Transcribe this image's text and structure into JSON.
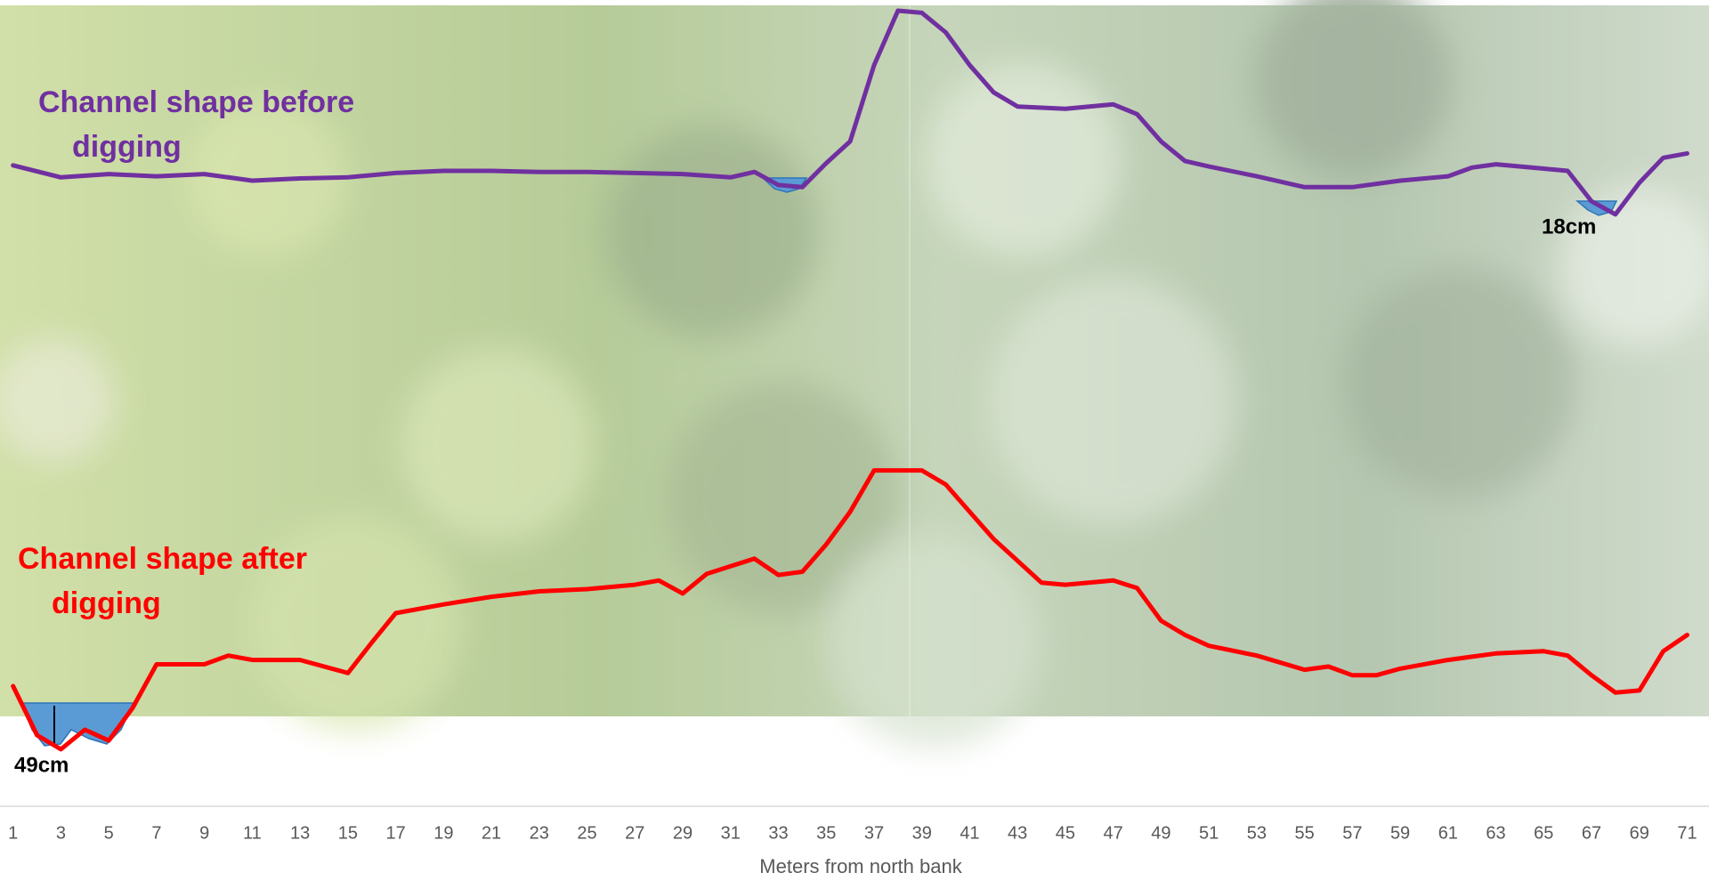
{
  "chart_data": {
    "type": "line",
    "x_label": "Meters from north bank",
    "xlim": [
      1,
      71
    ],
    "xticks": [
      1,
      3,
      5,
      7,
      9,
      11,
      13,
      15,
      17,
      19,
      21,
      23,
      25,
      27,
      29,
      31,
      33,
      35,
      37,
      39,
      41,
      43,
      45,
      47,
      49,
      51,
      53,
      55,
      57,
      59,
      61,
      63,
      65,
      67,
      69,
      71
    ],
    "series": [
      {
        "name": "Channel shape before digging",
        "color": "#7030a0",
        "x": [
          1,
          3,
          5,
          7,
          9,
          11,
          13,
          15,
          17,
          19,
          21,
          23,
          25,
          27,
          29,
          31,
          32,
          33,
          34,
          35,
          36,
          37,
          38,
          39,
          40,
          41,
          42,
          43,
          45,
          47,
          48,
          49,
          50,
          51,
          53,
          55,
          57,
          59,
          61,
          62,
          63,
          65,
          66,
          67,
          68,
          69,
          70,
          71
        ],
        "values": [
          656,
          645,
          648,
          646,
          648,
          642,
          644,
          645,
          649,
          651,
          651,
          650,
          650,
          649,
          648,
          645,
          650,
          638,
          636,
          658,
          678,
          748,
          798,
          796,
          778,
          748,
          723,
          710,
          708,
          712,
          703,
          678,
          660,
          655,
          646,
          636,
          636,
          642,
          646,
          654,
          657,
          653,
          651,
          623,
          611,
          640,
          663,
          667
        ]
      },
      {
        "name": "Channel shape after digging",
        "color": "#ff0000",
        "x": [
          1,
          2,
          3,
          4,
          5,
          6,
          7,
          9,
          10,
          11,
          13,
          15,
          16,
          17,
          19,
          21,
          23,
          25,
          27,
          28,
          29,
          30,
          31,
          32,
          33,
          34,
          35,
          36,
          37,
          38,
          39,
          40,
          41,
          42,
          43,
          44,
          45,
          47,
          48,
          49,
          50,
          51,
          53,
          55,
          56,
          57,
          58,
          59,
          61,
          63,
          65,
          66,
          67,
          68,
          69,
          70,
          71
        ],
        "values": [
          178,
          133,
          120,
          138,
          128,
          158,
          198,
          198,
          206,
          202,
          202,
          190,
          218,
          245,
          253,
          260,
          265,
          267,
          271,
          275,
          263,
          281,
          288,
          295,
          280,
          283,
          308,
          338,
          376,
          376,
          376,
          363,
          338,
          313,
          293,
          273,
          271,
          275,
          268,
          238,
          225,
          215,
          206,
          193,
          196,
          188,
          188,
          194,
          202,
          208,
          210,
          206,
          188,
          172,
          174,
          210,
          225
        ]
      }
    ],
    "annotations": [
      "18cm",
      "49cm"
    ]
  }
}
